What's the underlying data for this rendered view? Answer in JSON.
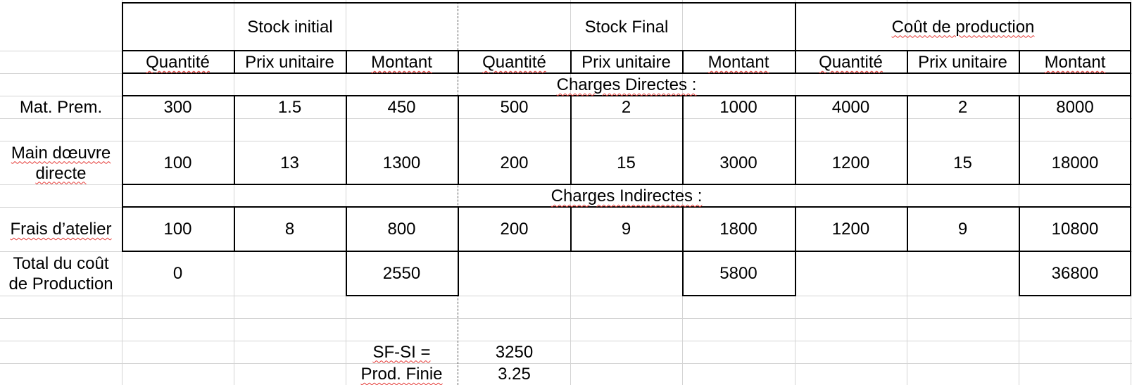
{
  "sheet": {
    "groups": {
      "stock_initial": "Stock initial",
      "stock_final": "Stock Final",
      "cout_production": "Coût de production"
    },
    "subheaders": {
      "quantite": "Quantité",
      "prix_unitaire": "Prix unitaire",
      "montant": "Montant"
    },
    "sections": {
      "directes": "Charges Directes :",
      "indirectes": "Charges Indirectes :"
    },
    "rows": {
      "mat_prem": {
        "label": "Mat. Prem.",
        "values": [
          "300",
          "1.5",
          "450",
          "500",
          "2",
          "1000",
          "4000",
          "2",
          "8000"
        ]
      },
      "main_oeuvre": {
        "label_line1": "Main dœuvre",
        "label_line2": "directe",
        "values": [
          "100",
          "13",
          "1300",
          "200",
          "15",
          "3000",
          "1200",
          "15",
          "18000"
        ]
      },
      "frais_atelier": {
        "label": "Frais d’atelier",
        "values": [
          "100",
          "8",
          "800",
          "200",
          "9",
          "1800",
          "1200",
          "9",
          "10800"
        ]
      },
      "total": {
        "label_line1": "Total du coût",
        "label_line2": "de Production",
        "values": [
          "0",
          "",
          "2550",
          "",
          "",
          "5800",
          "",
          "",
          "36800"
        ]
      }
    },
    "summary": {
      "sf_si_label": "SF-SI =",
      "sf_si_value": "3250",
      "prod_finie_label": "Prod. Finie",
      "prod_finie_value": "3.25"
    }
  }
}
